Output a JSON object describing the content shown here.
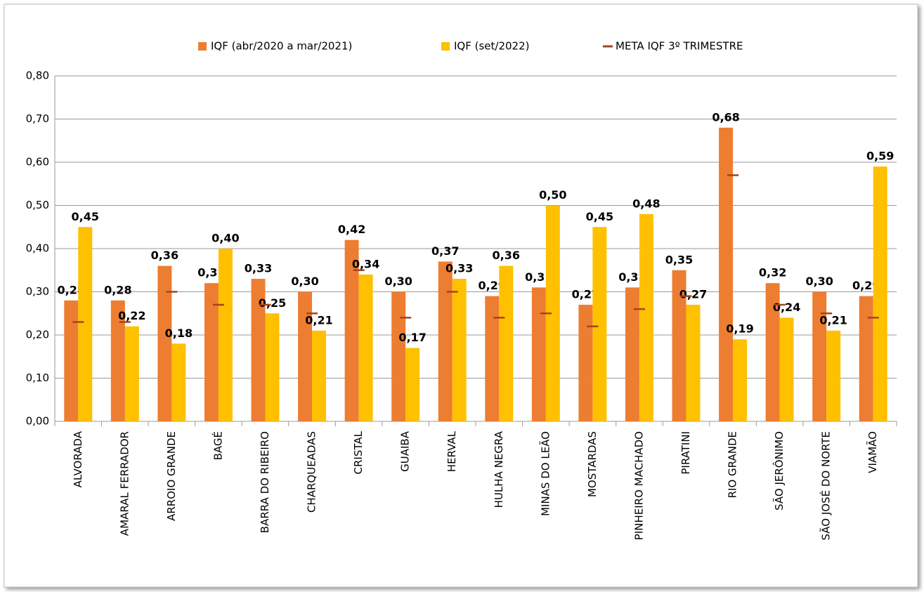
{
  "chart_data": {
    "type": "bar",
    "categories": [
      "ALVORADA",
      "AMARAL FERRADOR",
      "ARROIO GRANDE",
      "BAGÉ",
      "BARRA DO RIBEIRO",
      "CHARQUEADAS",
      "CRISTAL",
      "GUAIBA",
      "HERVAL",
      "HULHA NEGRA",
      "MINAS DO LEÃO",
      "MOSTARDAS",
      "PINHEIRO MACHADO",
      "PIRATINI",
      "RIO GRANDE",
      "SÃO JERÔNIMO",
      "SÃO JOSÉ DO NORTE",
      "VIAMÃO"
    ],
    "series": [
      {
        "name": "IQF (abr/2020 a mar/2021)",
        "color": "#ed7d31",
        "values": [
          0.28,
          0.28,
          0.36,
          0.32,
          0.33,
          0.3,
          0.42,
          0.3,
          0.37,
          0.29,
          0.31,
          0.27,
          0.31,
          0.35,
          0.68,
          0.32,
          0.3,
          0.29
        ],
        "value_labels": [
          "0,28",
          "0,28",
          "0,36",
          "0,32",
          "0,33",
          "0,30",
          "0,42",
          "0,30",
          "0,37",
          "0,29",
          "0,31",
          "0,27",
          "0,31",
          "0,35",
          "0,68",
          "0,32",
          "0,30",
          "0,29"
        ]
      },
      {
        "name": "IQF (set/2022)",
        "color": "#ffc000",
        "values": [
          0.45,
          0.22,
          0.18,
          0.4,
          0.25,
          0.21,
          0.34,
          0.17,
          0.33,
          0.36,
          0.5,
          0.45,
          0.48,
          0.27,
          0.19,
          0.24,
          0.21,
          0.59
        ],
        "value_labels": [
          "0,45",
          "0,22",
          "0,18",
          "0,40",
          "0,25",
          "0,21",
          "0,34",
          "0,17",
          "0,33",
          "0,36",
          "0,50",
          "0,45",
          "0,48",
          "0,27",
          "0,19",
          "0,24",
          "0,21",
          "0,59"
        ]
      },
      {
        "name": "META IQF 3º TRIMESTRE",
        "color": "#a0461c",
        "type": "marker",
        "values": [
          0.23,
          0.23,
          0.3,
          0.27,
          0.27,
          0.25,
          0.35,
          0.24,
          0.3,
          0.24,
          0.25,
          0.22,
          0.26,
          0.29,
          0.57,
          0.27,
          0.25,
          0.24
        ]
      }
    ],
    "ylim": [
      0,
      0.8
    ],
    "yticks": [
      {
        "value": 0,
        "label": "0,00"
      },
      {
        "value": 0.1,
        "label": "0,10"
      },
      {
        "value": 0.2,
        "label": "0,20"
      },
      {
        "value": 0.3,
        "label": "0,30"
      },
      {
        "value": 0.4,
        "label": "0,40"
      },
      {
        "value": 0.5,
        "label": "0,50"
      },
      {
        "value": 0.6,
        "label": "0,60"
      },
      {
        "value": 0.7,
        "label": "0,70"
      },
      {
        "value": 0.8,
        "label": "0,80"
      }
    ],
    "grid": true,
    "legend": "top"
  }
}
